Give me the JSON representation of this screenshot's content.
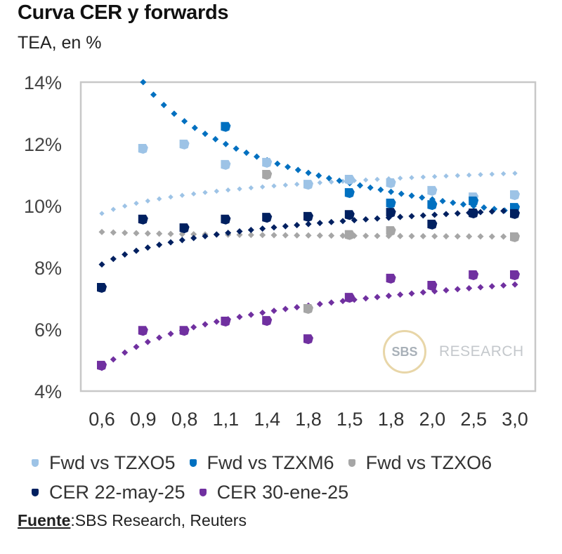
{
  "header": {
    "title": "Curva CER y forwards",
    "subtitle": "TEA, en %"
  },
  "watermark": {
    "circle_text": "SBS",
    "text": "RESEARCH"
  },
  "source": {
    "label": "Fuente",
    "text": ":SBS Research, Reuters"
  },
  "chart_data": {
    "type": "scatter",
    "title": "Curva CER y forwards",
    "subtitle": "TEA, en %",
    "xlabel": "",
    "ylabel": "TEA, en %",
    "categories": [
      "0,6",
      "0,9",
      "0,8",
      "1,1",
      "1,4",
      "1,8",
      "1,5",
      "1,8",
      "2,0",
      "2,5",
      "3,0"
    ],
    "ylim": [
      4,
      14
    ],
    "yticks": [
      4,
      6,
      8,
      10,
      12,
      14
    ],
    "ytick_labels": [
      "4%",
      "6%",
      "8%",
      "10%",
      "12%",
      "14%"
    ],
    "grid": false,
    "legend_position": "bottom",
    "series": [
      {
        "name": "Fwd vs TZXO5",
        "color": "#9DC3E6",
        "values": [
          null,
          11.84,
          11.98,
          11.32,
          11.39,
          10.68,
          10.84,
          10.73,
          10.48,
          10.27,
          10.34
        ],
        "trendline": {
          "type": "logarithmic",
          "start": 9.75,
          "end": 11.05,
          "from_index": 0
        }
      },
      {
        "name": "Fwd vs TZXM6",
        "color": "#0070C0",
        "values": [
          null,
          null,
          null,
          12.55,
          null,
          null,
          10.41,
          10.07,
          10.02,
          10.14,
          9.93
        ],
        "trendline": {
          "type": "logarithmic",
          "start": 14.0,
          "end": 9.8,
          "from_index": 1
        }
      },
      {
        "name": "Fwd vs TZXO6",
        "color": "#A6A6A6",
        "values": [
          null,
          null,
          null,
          null,
          11.0,
          6.66,
          9.05,
          9.18,
          null,
          null,
          8.98
        ],
        "trendline": {
          "type": "logarithmic",
          "start": 9.15,
          "end": 9.0,
          "from_index": 0
        }
      },
      {
        "name": "CER 22-may-25",
        "color": "#002060",
        "values": [
          7.34,
          9.55,
          9.27,
          9.55,
          9.61,
          9.64,
          9.7,
          9.77,
          9.39,
          9.75,
          9.73
        ],
        "trendline": {
          "type": "logarithmic",
          "start": 8.1,
          "end": 9.85,
          "from_index": 0
        }
      },
      {
        "name": "CER 30-ene-25",
        "color": "#7030A0",
        "values": [
          4.82,
          5.95,
          5.95,
          6.25,
          6.27,
          5.68,
          7.02,
          7.64,
          7.41,
          7.75,
          7.75
        ],
        "trendline": {
          "type": "logarithmic",
          "start": 4.75,
          "end": 7.45,
          "from_index": 0
        }
      }
    ]
  },
  "legend": {
    "rows": [
      [
        0,
        1,
        2
      ],
      [
        3,
        4
      ]
    ]
  }
}
